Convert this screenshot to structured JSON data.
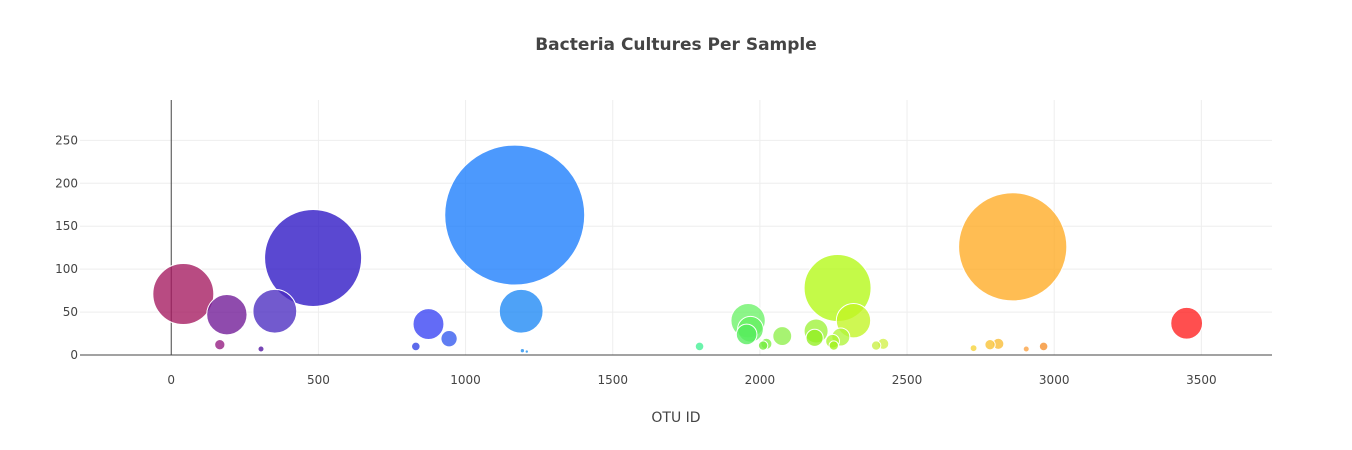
{
  "chart_data": {
    "type": "scatter",
    "title": "Bacteria Cultures Per Sample",
    "xlabel": "OTU ID",
    "ylabel": "",
    "xlim": [
      -310,
      3740
    ],
    "ylim": [
      0,
      297
    ],
    "x_ticks": [
      0,
      500,
      1000,
      1500,
      2000,
      2500,
      3000,
      3500
    ],
    "y_ticks": [
      0,
      50,
      100,
      150,
      200,
      250
    ],
    "grid": true,
    "legend": "none",
    "marker_size_encodes": "y",
    "series": [
      {
        "points": [
          {
            "x": 41,
            "y": 71,
            "color": "#a4185f"
          },
          {
            "x": 165,
            "y": 12,
            "color": "#941a80"
          },
          {
            "x": 189,
            "y": 47,
            "color": "#701896"
          },
          {
            "x": 305,
            "y": 7,
            "color": "#5011a0"
          },
          {
            "x": 352,
            "y": 51,
            "color": "#4a2bc0"
          },
          {
            "x": 482,
            "y": 113,
            "color": "#2c14c4"
          },
          {
            "x": 831,
            "y": 10,
            "color": "#2f40e6"
          },
          {
            "x": 874,
            "y": 36,
            "color": "#3741f4"
          },
          {
            "x": 944,
            "y": 19,
            "color": "#3358ee"
          },
          {
            "x": 1167,
            "y": 163,
            "color": "#197cfc"
          },
          {
            "x": 1189,
            "y": 51,
            "color": "#1c88f5"
          },
          {
            "x": 1193,
            "y": 5,
            "color": "#1d8df0"
          },
          {
            "x": 1208,
            "y": 4,
            "color": "#1e90ee"
          },
          {
            "x": 1795,
            "y": 10,
            "color": "#41f094"
          },
          {
            "x": 1960,
            "y": 40,
            "color": "#6cf268"
          },
          {
            "x": 1968,
            "y": 30,
            "color": "#64f060"
          },
          {
            "x": 1955,
            "y": 24,
            "color": "#55ec5c"
          },
          {
            "x": 2011,
            "y": 11,
            "color": "#72ec3c"
          },
          {
            "x": 2022,
            "y": 13,
            "color": "#7cf044"
          },
          {
            "x": 2076,
            "y": 22,
            "color": "#8ef04a"
          },
          {
            "x": 2191,
            "y": 28,
            "color": "#9ef238"
          },
          {
            "x": 2186,
            "y": 20,
            "color": "#92ee20"
          },
          {
            "x": 2247,
            "y": 16,
            "color": "#aaf52e"
          },
          {
            "x": 2251,
            "y": 11,
            "color": "#a0f21c"
          },
          {
            "x": 2264,
            "y": 78,
            "color": "#b4f914"
          },
          {
            "x": 2275,
            "y": 21,
            "color": "#b0f53a"
          },
          {
            "x": 2318,
            "y": 40,
            "color": "#c2f523"
          },
          {
            "x": 2395,
            "y": 11,
            "color": "#c9f044"
          },
          {
            "x": 2419,
            "y": 13,
            "color": "#d2f148"
          },
          {
            "x": 2726,
            "y": 8,
            "color": "#f6d236"
          },
          {
            "x": 2782,
            "y": 12,
            "color": "#f8c232"
          },
          {
            "x": 2810,
            "y": 13,
            "color": "#f9bc35"
          },
          {
            "x": 2859,
            "y": 126,
            "color": "#ffaa22"
          },
          {
            "x": 2905,
            "y": 7,
            "color": "#fba040"
          },
          {
            "x": 2964,
            "y": 10,
            "color": "#f58e2c"
          },
          {
            "x": 3450,
            "y": 37,
            "color": "#ff1e1e"
          }
        ]
      }
    ]
  }
}
